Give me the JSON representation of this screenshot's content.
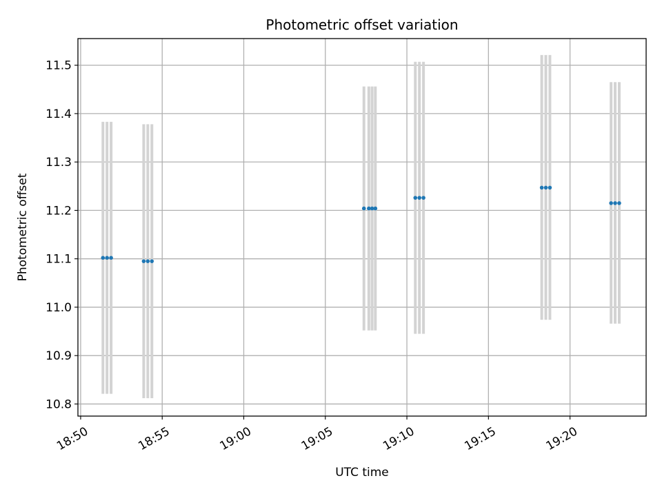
{
  "chart_data": {
    "type": "scatter",
    "title": "Photometric offset variation",
    "xlabel": "UTC time",
    "ylabel": "Photometric offset",
    "x_axis_type": "time",
    "xlim": [
      "18:49:50",
      "19:24:40"
    ],
    "ylim": [
      10.775,
      11.555
    ],
    "x_ticks": [
      "18:50",
      "18:55",
      "19:00",
      "19:05",
      "19:10",
      "19:15",
      "19:20"
    ],
    "y_ticks": [
      "10.8",
      "10.9",
      "11.0",
      "11.1",
      "11.2",
      "11.3",
      "11.4",
      "11.5"
    ],
    "grid": true,
    "marker_color": "#1f77b4",
    "errorbar_color": "#d3d3d3",
    "groups": [
      {
        "x": [
          "18:51:22",
          "18:51:37",
          "18:51:52"
        ],
        "y": 11.102,
        "error_low": 10.821,
        "error_high": 11.383
      },
      {
        "x": [
          "18:53:52",
          "18:54:07",
          "18:54:22"
        ],
        "y": 11.095,
        "error_low": 10.812,
        "error_high": 11.378
      },
      {
        "x": [
          "19:07:22"
        ],
        "y": 11.204,
        "error_low": 10.952,
        "error_high": 11.456
      },
      {
        "x": [
          "19:07:40",
          "19:07:52",
          "19:08:04"
        ],
        "y": 11.204,
        "error_low": 10.952,
        "error_high": 11.456
      },
      {
        "x": [
          "19:10:31",
          "19:10:46",
          "19:11:01"
        ],
        "y": 11.226,
        "error_low": 10.945,
        "error_high": 11.507
      },
      {
        "x": [
          "19:18:16",
          "19:18:31",
          "19:18:46"
        ],
        "y": 11.247,
        "error_low": 10.974,
        "error_high": 11.521
      },
      {
        "x": [
          "19:22:31",
          "19:22:46",
          "19:23:01"
        ],
        "y": 11.215,
        "error_low": 10.966,
        "error_high": 11.465
      }
    ]
  }
}
